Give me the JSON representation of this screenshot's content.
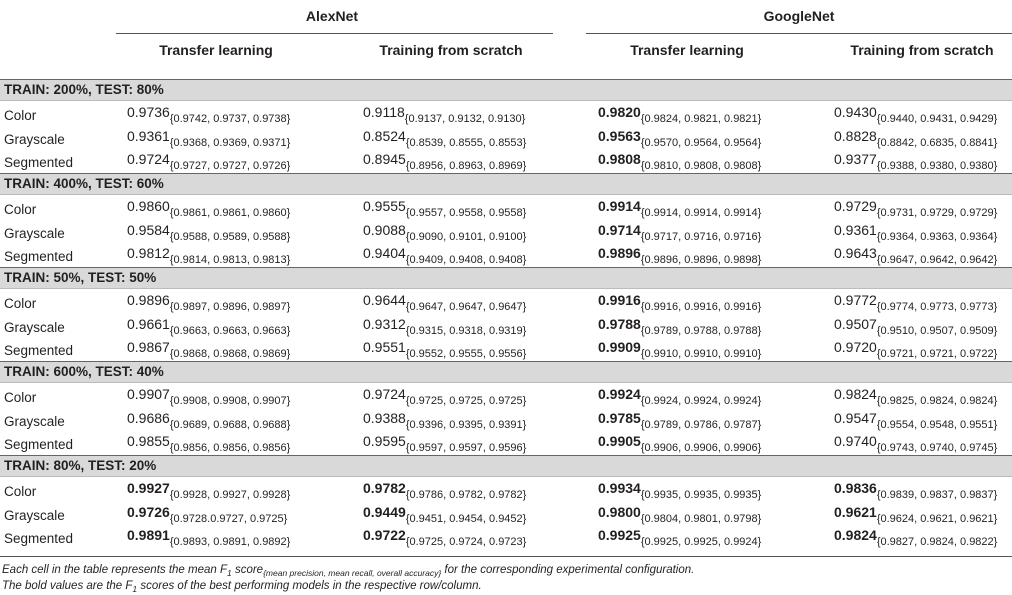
{
  "header": {
    "models": [
      "AlexNet",
      "GoogleNet"
    ],
    "subcolumns": [
      "Transfer learning",
      "Training from scratch",
      "Transfer learning",
      "Training from scratch"
    ]
  },
  "groups": [
    {
      "title": "TRAIN: 200%, TEST: 80%",
      "rows": [
        {
          "label": "Color",
          "cells": [
            {
              "v": "0.9736",
              "t": "{0.9742, 0.9737, 0.9738}",
              "b": false
            },
            {
              "v": "0.9118",
              "t": "{0.9137, 0.9132, 0.9130}",
              "b": false
            },
            {
              "v": "0.9820",
              "t": "{0.9824, 0.9821, 0.9821}",
              "b": true
            },
            {
              "v": "0.9430",
              "t": "{0.9440, 0.9431, 0.9429}",
              "b": false
            }
          ]
        },
        {
          "label": "Grayscale",
          "cells": [
            {
              "v": "0.9361",
              "t": "{0.9368, 0.9369, 0.9371}",
              "b": false
            },
            {
              "v": "0.8524",
              "t": "{0.8539, 0.8555, 0.8553}",
              "b": false
            },
            {
              "v": "0.9563",
              "t": "{0.9570, 0.9564, 0.9564}",
              "b": true
            },
            {
              "v": "0.8828",
              "t": "{0.8842, 0.6835, 0.8841}",
              "b": false
            }
          ]
        },
        {
          "label": "Segmented",
          "cells": [
            {
              "v": "0.9724",
              "t": "{0.9727, 0.9727, 0.9726}",
              "b": false
            },
            {
              "v": "0.8945",
              "t": "{0.8956, 0.8963, 0.8969}",
              "b": false
            },
            {
              "v": "0.9808",
              "t": "{0.9810, 0.9808, 0.9808}",
              "b": true
            },
            {
              "v": "0.9377",
              "t": "{0.9388, 0.9380, 0.9380}",
              "b": false
            }
          ]
        }
      ]
    },
    {
      "title": "TRAIN: 400%, TEST: 60%",
      "rows": [
        {
          "label": "Color",
          "cells": [
            {
              "v": "0.9860",
              "t": "{0.9861, 0.9861, 0.9860}",
              "b": false
            },
            {
              "v": "0.9555",
              "t": "{0.9557, 0.9558, 0.9558}",
              "b": false
            },
            {
              "v": "0.9914",
              "t": "{0.9914, 0.9914, 0.9914}",
              "b": true
            },
            {
              "v": "0.9729",
              "t": "{0.9731, 0.9729, 0.9729}",
              "b": false
            }
          ]
        },
        {
          "label": "Grayscale",
          "cells": [
            {
              "v": "0.9584",
              "t": "{0.9588, 0.9589, 0.9588}",
              "b": false
            },
            {
              "v": "0.9088",
              "t": "{0.9090, 0.9101, 0.9100}",
              "b": false
            },
            {
              "v": "0.9714",
              "t": "{0.9717, 0.9716, 0.9716}",
              "b": true
            },
            {
              "v": "0.9361",
              "t": "{0.9364, 0.9363, 0.9364}",
              "b": false
            }
          ]
        },
        {
          "label": "Segmented",
          "cells": [
            {
              "v": "0.9812",
              "t": "{0.9814, 0.9813, 0.9813}",
              "b": false
            },
            {
              "v": "0.9404",
              "t": "{0.9409, 0.9408, 0.9408}",
              "b": false
            },
            {
              "v": "0.9896",
              "t": "{0.9896, 0.9896, 0.9898}",
              "b": true
            },
            {
              "v": "0.9643",
              "t": "{0.9647, 0.9642, 0.9642}",
              "b": false
            }
          ]
        }
      ]
    },
    {
      "title": "TRAIN: 50%, TEST: 50%",
      "rows": [
        {
          "label": "Color",
          "cells": [
            {
              "v": "0.9896",
              "t": "{0.9897, 0.9896, 0.9897}",
              "b": false
            },
            {
              "v": "0.9644",
              "t": "{0.9647, 0.9647, 0.9647}",
              "b": false
            },
            {
              "v": "0.9916",
              "t": "{0.9916, 0.9916, 0.9916}",
              "b": true
            },
            {
              "v": "0.9772",
              "t": "{0.9774, 0.9773, 0.9773}",
              "b": false
            }
          ]
        },
        {
          "label": "Grayscale",
          "cells": [
            {
              "v": "0.9661",
              "t": "{0.9663, 0.9663, 0.9663}",
              "b": false
            },
            {
              "v": "0.9312",
              "t": "{0.9315, 0.9318, 0.9319}",
              "b": false
            },
            {
              "v": "0.9788",
              "t": "{0.9789, 0.9788, 0.9788}",
              "b": true
            },
            {
              "v": "0.9507",
              "t": "{0.9510, 0.9507, 0.9509}",
              "b": false
            }
          ]
        },
        {
          "label": "Segmented",
          "cells": [
            {
              "v": "0.9867",
              "t": "{0.9868, 0.9868, 0.9869}",
              "b": false
            },
            {
              "v": "0.9551",
              "t": "{0.9552, 0.9555, 0.9556}",
              "b": false
            },
            {
              "v": "0.9909",
              "t": "{0.9910, 0.9910, 0.9910}",
              "b": true
            },
            {
              "v": "0.9720",
              "t": "{0.9721, 0.9721, 0.9722}",
              "b": false
            }
          ]
        }
      ]
    },
    {
      "title": "TRAIN: 600%, TEST: 40%",
      "rows": [
        {
          "label": "Color",
          "cells": [
            {
              "v": "0.9907",
              "t": "{0.9908, 0.9908, 0.9907}",
              "b": false
            },
            {
              "v": "0.9724",
              "t": "{0.9725, 0.9725, 0.9725}",
              "b": false
            },
            {
              "v": "0.9924",
              "t": "{0.9924, 0.9924, 0.9924}",
              "b": true
            },
            {
              "v": "0.9824",
              "t": "{0.9825, 0.9824, 0.9824}",
              "b": false
            }
          ]
        },
        {
          "label": "Grayscale",
          "cells": [
            {
              "v": "0.9686",
              "t": "{0.9689, 0.9688, 0.9688}",
              "b": false
            },
            {
              "v": "0.9388",
              "t": "{0.9396, 0.9395, 0.9391}",
              "b": false
            },
            {
              "v": "0.9785",
              "t": "{0.9789, 0.9786, 0.9787}",
              "b": true
            },
            {
              "v": "0.9547",
              "t": "{0.9554, 0.9548, 0.9551}",
              "b": false
            }
          ]
        },
        {
          "label": "Segmented",
          "cells": [
            {
              "v": "0.9855",
              "t": "{0.9856, 0.9856, 0.9856}",
              "b": false
            },
            {
              "v": "0.9595",
              "t": "{0.9597, 0.9597, 0.9596}",
              "b": false
            },
            {
              "v": "0.9905",
              "t": "{0.9906, 0.9906, 0.9906}",
              "b": true
            },
            {
              "v": "0.9740",
              "t": "{0.9743, 0.9740, 0.9745}",
              "b": false
            }
          ]
        }
      ]
    },
    {
      "title": "TRAIN: 80%, TEST: 20%",
      "rows": [
        {
          "label": "Color",
          "cells": [
            {
              "v": "0.9927",
              "t": "{0.9928, 0.9927, 0.9928}",
              "b": true
            },
            {
              "v": "0.9782",
              "t": "{0.9786, 0.9782, 0.9782}",
              "b": true
            },
            {
              "v": "0.9934",
              "t": "{0.9935, 0.9935, 0.9935}",
              "b": true
            },
            {
              "v": "0.9836",
              "t": "{0.9839, 0.9837, 0.9837}",
              "b": true
            }
          ]
        },
        {
          "label": "Grayscale",
          "cells": [
            {
              "v": "0.9726",
              "t": "{0.9728.0.9727, 0.9725}",
              "b": true
            },
            {
              "v": "0.9449",
              "t": "{0.9451, 0.9454, 0.9452}",
              "b": true
            },
            {
              "v": "0.9800",
              "t": "{0.9804, 0.9801, 0.9798}",
              "b": true
            },
            {
              "v": "0.9621",
              "t": "{0.9624, 0.9621, 0.9621}",
              "b": true
            }
          ]
        },
        {
          "label": "Segmented",
          "cells": [
            {
              "v": "0.9891",
              "t": "{0.9893, 0.9891, 0.9892}",
              "b": true
            },
            {
              "v": "0.9722",
              "t": "{0.9725, 0.9724, 0.9723}",
              "b": true
            },
            {
              "v": "0.9925",
              "t": "{0.9925, 0.9925, 0.9924}",
              "b": true
            },
            {
              "v": "0.9824",
              "t": "{0.9827, 0.9824, 0.9822}",
              "b": true
            }
          ]
        }
      ]
    }
  ],
  "footnotes": {
    "line1_pre": "Each cell in the table represents the mean F",
    "line1_sub1": "1",
    "line1_mid": " score",
    "line1_sub2": "{mean precision, mean recall, overall accuracy}",
    "line1_post": " for the corresponding experimental configuration.",
    "line2_pre": "The bold values are the F",
    "line2_sub": "1",
    "line2_post": " scores of the best performing models in the respective row/column."
  }
}
